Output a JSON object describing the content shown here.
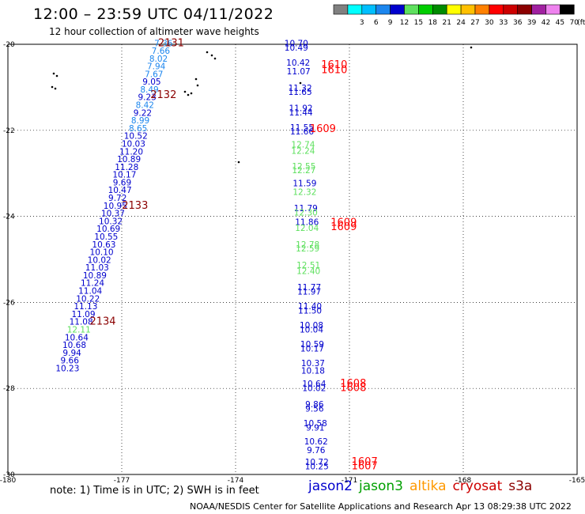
{
  "header": {
    "title": "12:00 – 23:59 UTC 04/11/2022",
    "subtitle": "12 hour collection of altimeter wave heights"
  },
  "color_scale": {
    "unit_label": "(ft)",
    "bins": [
      {
        "label": "",
        "color": "#808080"
      },
      {
        "label": "3",
        "color": "#00ffff"
      },
      {
        "label": "6",
        "color": "#00bfff"
      },
      {
        "label": "9",
        "color": "#1c86ee"
      },
      {
        "label": "12",
        "color": "#0000cd"
      },
      {
        "label": "15",
        "color": "#5ee05e"
      },
      {
        "label": "18",
        "color": "#00cd00"
      },
      {
        "label": "21",
        "color": "#008b00"
      },
      {
        "label": "24",
        "color": "#ffff00"
      },
      {
        "label": "27",
        "color": "#ffc000"
      },
      {
        "label": "30",
        "color": "#ff8000"
      },
      {
        "label": "33",
        "color": "#ff0000"
      },
      {
        "label": "36",
        "color": "#cd0000"
      },
      {
        "label": "39",
        "color": "#8b0000"
      },
      {
        "label": "42",
        "color": "#a020a0"
      },
      {
        "label": "45",
        "color": "#ee82ee"
      },
      {
        "label": "70",
        "color": "#000000"
      }
    ]
  },
  "map": {
    "lat_labels": [
      {
        "value": -20,
        "label": "-20"
      },
      {
        "value": -22,
        "label": "-22"
      },
      {
        "value": -24,
        "label": "-24"
      },
      {
        "value": -26,
        "label": "-26"
      },
      {
        "value": -28,
        "label": "-28"
      },
      {
        "value": -30,
        "label": "-30"
      }
    ],
    "lon_labels": [
      {
        "value": -180,
        "label": "-180"
      },
      {
        "value": -177,
        "label": "-177"
      },
      {
        "value": -174,
        "label": "-174"
      },
      {
        "value": -171,
        "label": "-171"
      },
      {
        "value": -168,
        "label": "-168"
      },
      {
        "value": -165,
        "label": "-165"
      }
    ]
  },
  "track_west": [
    {
      "lat": -20.05,
      "lon": -175.9,
      "v": "7.36",
      "c": "#1c86ee"
    },
    {
      "lat": -20.22,
      "lon": -175.97,
      "v": "7.66",
      "c": "#1c86ee"
    },
    {
      "lat": -20.4,
      "lon": -176.03,
      "v": "8.02",
      "c": "#1c86ee"
    },
    {
      "lat": -20.58,
      "lon": -176.09,
      "v": "7.94",
      "c": "#1c86ee"
    },
    {
      "lat": -20.76,
      "lon": -176.15,
      "v": "7.67",
      "c": "#1c86ee"
    },
    {
      "lat": -20.94,
      "lon": -176.21,
      "v": "9.05",
      "c": "#0000cd"
    },
    {
      "lat": -21.12,
      "lon": -176.27,
      "v": "8.49",
      "c": "#1c86ee"
    },
    {
      "lat": -21.3,
      "lon": -176.33,
      "v": "9.23",
      "c": "#0000cd"
    },
    {
      "lat": -21.48,
      "lon": -176.39,
      "v": "8.42",
      "c": "#1c86ee"
    },
    {
      "lat": -21.66,
      "lon": -176.45,
      "v": "9.22",
      "c": "#0000cd"
    },
    {
      "lat": -21.84,
      "lon": -176.51,
      "v": "8.99",
      "c": "#1c86ee"
    },
    {
      "lat": -22.02,
      "lon": -176.57,
      "v": "8.65",
      "c": "#1c86ee"
    },
    {
      "lat": -22.2,
      "lon": -176.63,
      "v": "10.52",
      "c": "#0000cd"
    },
    {
      "lat": -22.38,
      "lon": -176.69,
      "v": "10.03",
      "c": "#0000cd"
    },
    {
      "lat": -22.56,
      "lon": -176.75,
      "v": "11.20",
      "c": "#0000cd"
    },
    {
      "lat": -22.74,
      "lon": -176.81,
      "v": "10.89",
      "c": "#0000cd"
    },
    {
      "lat": -22.92,
      "lon": -176.87,
      "v": "11.28",
      "c": "#0000cd"
    },
    {
      "lat": -23.1,
      "lon": -176.93,
      "v": "10.17",
      "c": "#0000cd"
    },
    {
      "lat": -23.28,
      "lon": -176.99,
      "v": "9.69",
      "c": "#0000cd"
    },
    {
      "lat": -23.46,
      "lon": -177.05,
      "v": "10.47",
      "c": "#0000cd"
    },
    {
      "lat": -23.64,
      "lon": -177.11,
      "v": "9.72",
      "c": "#0000cd"
    },
    {
      "lat": -23.82,
      "lon": -177.17,
      "v": "10.95",
      "c": "#0000cd"
    },
    {
      "lat": -24.0,
      "lon": -177.23,
      "v": "10.37",
      "c": "#0000cd"
    },
    {
      "lat": -24.18,
      "lon": -177.29,
      "v": "10.32",
      "c": "#0000cd"
    },
    {
      "lat": -24.36,
      "lon": -177.35,
      "v": "10.69",
      "c": "#0000cd"
    },
    {
      "lat": -24.54,
      "lon": -177.41,
      "v": "10.55",
      "c": "#0000cd"
    },
    {
      "lat": -24.72,
      "lon": -177.47,
      "v": "10.63",
      "c": "#0000cd"
    },
    {
      "lat": -24.9,
      "lon": -177.53,
      "v": "10.10",
      "c": "#0000cd"
    },
    {
      "lat": -25.08,
      "lon": -177.59,
      "v": "10.02",
      "c": "#0000cd"
    },
    {
      "lat": -25.26,
      "lon": -177.65,
      "v": "11.03",
      "c": "#0000cd"
    },
    {
      "lat": -25.44,
      "lon": -177.71,
      "v": "10.89",
      "c": "#0000cd"
    },
    {
      "lat": -25.62,
      "lon": -177.77,
      "v": "11.24",
      "c": "#0000cd"
    },
    {
      "lat": -25.8,
      "lon": -177.83,
      "v": "11.04",
      "c": "#0000cd"
    },
    {
      "lat": -25.98,
      "lon": -177.89,
      "v": "10.22",
      "c": "#0000cd"
    },
    {
      "lat": -26.16,
      "lon": -177.95,
      "v": "11.13",
      "c": "#0000cd"
    },
    {
      "lat": -26.34,
      "lon": -178.01,
      "v": "11.09",
      "c": "#0000cd"
    },
    {
      "lat": -26.52,
      "lon": -178.07,
      "v": "11.08",
      "c": "#0000cd"
    },
    {
      "lat": -26.7,
      "lon": -178.13,
      "v": "12.11",
      "c": "#5ee05e"
    },
    {
      "lat": -26.88,
      "lon": -178.19,
      "v": "10.64",
      "c": "#0000cd"
    },
    {
      "lat": -27.06,
      "lon": -178.25,
      "v": "10.68",
      "c": "#0000cd"
    },
    {
      "lat": -27.24,
      "lon": -178.31,
      "v": "9.94",
      "c": "#0000cd"
    },
    {
      "lat": -27.42,
      "lon": -178.37,
      "v": "9.66",
      "c": "#0000cd"
    },
    {
      "lat": -27.6,
      "lon": -178.43,
      "v": "10.23",
      "c": "#0000cd"
    }
  ],
  "track_east": [
    {
      "lat": -20.05,
      "lon": -172.4,
      "v": "10.70",
      "c": "#0000cd"
    },
    {
      "lat": -20.15,
      "lon": -172.4,
      "v": "10.49",
      "c": "#0000cd"
    },
    {
      "lat": -20.5,
      "lon": -172.35,
      "v": "10.42",
      "c": "#0000cd"
    },
    {
      "lat": -20.7,
      "lon": -172.34,
      "v": "11.07",
      "c": "#0000cd"
    },
    {
      "lat": -21.08,
      "lon": -172.3,
      "v": "11.32",
      "c": "#0000cd"
    },
    {
      "lat": -21.18,
      "lon": -172.3,
      "v": "11.65",
      "c": "#0000cd"
    },
    {
      "lat": -21.55,
      "lon": -172.28,
      "v": "11.92",
      "c": "#0000cd"
    },
    {
      "lat": -21.65,
      "lon": -172.28,
      "v": "11.44",
      "c": "#0000cd"
    },
    {
      "lat": -22.0,
      "lon": -172.25,
      "v": "11.55",
      "c": "#0000cd"
    },
    {
      "lat": -22.1,
      "lon": -172.25,
      "v": "11.66",
      "c": "#0000cd"
    },
    {
      "lat": -22.4,
      "lon": -172.22,
      "v": "12.74",
      "c": "#5ee05e"
    },
    {
      "lat": -22.55,
      "lon": -172.22,
      "v": "12.24",
      "c": "#5ee05e"
    },
    {
      "lat": -22.9,
      "lon": -172.2,
      "v": "12.55",
      "c": "#5ee05e"
    },
    {
      "lat": -23.0,
      "lon": -172.2,
      "v": "12.27",
      "c": "#5ee05e"
    },
    {
      "lat": -23.3,
      "lon": -172.18,
      "v": "11.59",
      "c": "#0000cd"
    },
    {
      "lat": -23.5,
      "lon": -172.18,
      "v": "12.32",
      "c": "#5ee05e"
    },
    {
      "lat": -23.88,
      "lon": -172.15,
      "v": "11.79",
      "c": "#0000cd"
    },
    {
      "lat": -23.98,
      "lon": -172.15,
      "v": "12.30",
      "c": "#5ee05e"
    },
    {
      "lat": -24.2,
      "lon": -172.12,
      "v": "11.86",
      "c": "#0000cd"
    },
    {
      "lat": -24.34,
      "lon": -172.12,
      "v": "12.04",
      "c": "#5ee05e"
    },
    {
      "lat": -24.72,
      "lon": -172.1,
      "v": "12.78",
      "c": "#5ee05e"
    },
    {
      "lat": -24.82,
      "lon": -172.1,
      "v": "12.59",
      "c": "#5ee05e"
    },
    {
      "lat": -25.2,
      "lon": -172.08,
      "v": "12.51",
      "c": "#5ee05e"
    },
    {
      "lat": -25.34,
      "lon": -172.08,
      "v": "12.40",
      "c": "#5ee05e"
    },
    {
      "lat": -25.72,
      "lon": -172.06,
      "v": "11.77",
      "c": "#0000cd"
    },
    {
      "lat": -25.82,
      "lon": -172.06,
      "v": "11.97",
      "c": "#0000cd"
    },
    {
      "lat": -26.16,
      "lon": -172.04,
      "v": "11.40",
      "c": "#0000cd"
    },
    {
      "lat": -26.26,
      "lon": -172.04,
      "v": "11.50",
      "c": "#0000cd"
    },
    {
      "lat": -26.6,
      "lon": -172.0,
      "v": "10.08",
      "c": "#0000cd"
    },
    {
      "lat": -26.7,
      "lon": -172.0,
      "v": "10.04",
      "c": "#0000cd"
    },
    {
      "lat": -27.04,
      "lon": -171.98,
      "v": "10.59",
      "c": "#0000cd"
    },
    {
      "lat": -27.14,
      "lon": -171.98,
      "v": "10.17",
      "c": "#0000cd"
    },
    {
      "lat": -27.48,
      "lon": -171.96,
      "v": "10.37",
      "c": "#0000cd"
    },
    {
      "lat": -27.66,
      "lon": -171.96,
      "v": "10.18",
      "c": "#0000cd"
    },
    {
      "lat": -27.96,
      "lon": -171.93,
      "v": "10.64",
      "c": "#0000cd"
    },
    {
      "lat": -28.06,
      "lon": -171.93,
      "v": "10.02",
      "c": "#0000cd"
    },
    {
      "lat": -28.44,
      "lon": -171.92,
      "v": "9.86",
      "c": "#0000cd"
    },
    {
      "lat": -28.54,
      "lon": -171.92,
      "v": "9.56",
      "c": "#0000cd"
    },
    {
      "lat": -28.88,
      "lon": -171.9,
      "v": "10.58",
      "c": "#0000cd"
    },
    {
      "lat": -28.98,
      "lon": -171.9,
      "v": "9.91",
      "c": "#0000cd"
    },
    {
      "lat": -29.3,
      "lon": -171.88,
      "v": "10.62",
      "c": "#0000cd"
    },
    {
      "lat": -29.5,
      "lon": -171.88,
      "v": "9.76",
      "c": "#0000cd"
    },
    {
      "lat": -29.78,
      "lon": -171.86,
      "v": "10.72",
      "c": "#0000cd"
    },
    {
      "lat": -29.88,
      "lon": -171.86,
      "v": "10.25",
      "c": "#0000cd"
    }
  ],
  "time_labels": [
    {
      "lat": -20.05,
      "lon": -175.7,
      "t": "2131",
      "c": "#8b0000"
    },
    {
      "lat": -21.25,
      "lon": -175.9,
      "t": "2132",
      "c": "#8b0000"
    },
    {
      "lat": -23.82,
      "lon": -176.65,
      "t": "2133",
      "c": "#8b0000"
    },
    {
      "lat": -26.52,
      "lon": -177.5,
      "t": "2134",
      "c": "#8b0000"
    },
    {
      "lat": -20.55,
      "lon": -171.4,
      "t": "1610",
      "c": "#ff0000"
    },
    {
      "lat": -20.67,
      "lon": -171.4,
      "t": "1610",
      "c": "#ff0000"
    },
    {
      "lat": -22.04,
      "lon": -171.7,
      "t": "1609",
      "c": "#ff0000"
    },
    {
      "lat": -24.22,
      "lon": -171.15,
      "t": "1609",
      "c": "#ff0000"
    },
    {
      "lat": -24.32,
      "lon": -171.15,
      "t": "1609",
      "c": "#ff0000"
    },
    {
      "lat": -27.96,
      "lon": -170.9,
      "t": "1608",
      "c": "#ff0000"
    },
    {
      "lat": -28.06,
      "lon": -170.9,
      "t": "1608",
      "c": "#ff0000"
    },
    {
      "lat": -29.78,
      "lon": -170.6,
      "t": "1607",
      "c": "#ff0000"
    },
    {
      "lat": -29.88,
      "lon": -170.6,
      "t": "1607",
      "c": "#ff0000"
    }
  ],
  "note": "note: 1) Time is in UTC; 2) SWH is in feet",
  "satellites": [
    {
      "name": "jason2",
      "color": "#0000cd"
    },
    {
      "name": "jason3",
      "color": "#00a000"
    },
    {
      "name": "altika",
      "color": "#ff9900"
    },
    {
      "name": "cryosat",
      "color": "#cd0000"
    },
    {
      "name": "s3a",
      "color": "#8b0000"
    }
  ],
  "footer": "NOAA/NESDIS Center for Satellite Applications and Research   Apr 13 08:29:38 UTC 2022"
}
